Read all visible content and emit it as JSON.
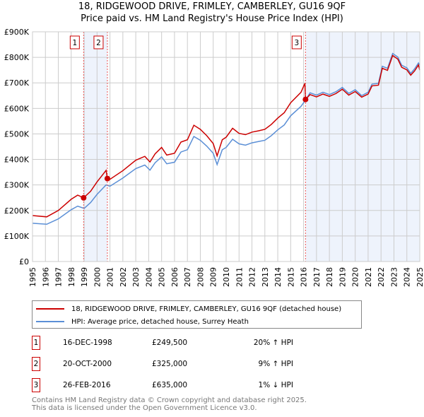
{
  "chart_data": {
    "type": "line",
    "title": "18, RIDGEWOOD DRIVE, FRIMLEY, CAMBERLEY, GU16 9QF",
    "subtitle": "Price paid vs. HM Land Registry's House Price Index (HPI)",
    "xlim": [
      1995,
      2025
    ],
    "ylim": [
      0,
      900000
    ],
    "x_ticks": [
      "1995",
      "1996",
      "1997",
      "1998",
      "1999",
      "2000",
      "2001",
      "2002",
      "2003",
      "2004",
      "2005",
      "2006",
      "2007",
      "2008",
      "2009",
      "2010",
      "2011",
      "2012",
      "2013",
      "2014",
      "2015",
      "2016",
      "2017",
      "2018",
      "2019",
      "2020",
      "2021",
      "2022",
      "2023",
      "2024",
      "2025"
    ],
    "y_ticks": [
      {
        "v": 0,
        "label": "£0"
      },
      {
        "v": 100000,
        "label": "£100K"
      },
      {
        "v": 200000,
        "label": "£200K"
      },
      {
        "v": 300000,
        "label": "£300K"
      },
      {
        "v": 400000,
        "label": "£400K"
      },
      {
        "v": 500000,
        "label": "£500K"
      },
      {
        "v": 600000,
        "label": "£600K"
      },
      {
        "v": 700000,
        "label": "£700K"
      },
      {
        "v": 800000,
        "label": "£800K"
      },
      {
        "v": 900000,
        "label": "£900K"
      }
    ],
    "grid": true,
    "series": [
      {
        "name": "18, RIDGEWOOD DRIVE, FRIMLEY, CAMBERLEY, GU16 9QF (detached house)",
        "color": "#cc0000",
        "points": [
          [
            1995,
            180
          ],
          [
            1996.1,
            175
          ],
          [
            1997,
            200
          ],
          [
            1998,
            244
          ],
          [
            1998.5,
            260
          ],
          [
            1998.96,
            249.5
          ],
          [
            1999.5,
            275
          ],
          [
            2000,
            312
          ],
          [
            2000.7,
            357
          ],
          [
            2000.8,
            325
          ],
          [
            2001,
            322
          ],
          [
            2002,
            356
          ],
          [
            2003,
            397
          ],
          [
            2003.7,
            412
          ],
          [
            2004.1,
            390
          ],
          [
            2004.5,
            422
          ],
          [
            2005,
            447
          ],
          [
            2005.4,
            417
          ],
          [
            2006,
            424
          ],
          [
            2006.5,
            468
          ],
          [
            2007,
            477
          ],
          [
            2007.5,
            534
          ],
          [
            2008,
            518
          ],
          [
            2008.5,
            493
          ],
          [
            2009,
            462
          ],
          [
            2009.3,
            414
          ],
          [
            2009.7,
            477
          ],
          [
            2010,
            487
          ],
          [
            2010.5,
            522
          ],
          [
            2011,
            502
          ],
          [
            2011.5,
            497
          ],
          [
            2012,
            507
          ],
          [
            2012.5,
            512
          ],
          [
            2013,
            518
          ],
          [
            2013.5,
            537
          ],
          [
            2014,
            562
          ],
          [
            2014.5,
            583
          ],
          [
            2015,
            622
          ],
          [
            2015.8,
            663
          ],
          [
            2016.1,
            698
          ],
          [
            2016.15,
            635
          ],
          [
            2016.5,
            654
          ],
          [
            2017,
            645
          ],
          [
            2017.5,
            656
          ],
          [
            2018,
            647
          ],
          [
            2018.5,
            658
          ],
          [
            2019,
            675
          ],
          [
            2019.5,
            652
          ],
          [
            2020,
            666
          ],
          [
            2020.5,
            644
          ],
          [
            2021,
            656
          ],
          [
            2021.3,
            688
          ],
          [
            2021.8,
            691
          ],
          [
            2022.1,
            757
          ],
          [
            2022.5,
            749
          ],
          [
            2022.9,
            807
          ],
          [
            2023.3,
            793
          ],
          [
            2023.6,
            761
          ],
          [
            2024,
            751
          ],
          [
            2024.3,
            730
          ],
          [
            2024.6,
            747
          ],
          [
            2024.9,
            770
          ],
          [
            2025,
            750
          ]
        ]
      },
      {
        "name": "HPI: Average price, detached house, Surrey Heath",
        "color": "#5b8fd6",
        "points": [
          [
            1995,
            150
          ],
          [
            1996.1,
            146
          ],
          [
            1997,
            167
          ],
          [
            1998,
            203
          ],
          [
            1998.5,
            217
          ],
          [
            1999,
            208
          ],
          [
            1999.5,
            231
          ],
          [
            2000,
            263
          ],
          [
            2000.7,
            300
          ],
          [
            2001,
            295
          ],
          [
            2002,
            327
          ],
          [
            2003,
            364
          ],
          [
            2003.7,
            378
          ],
          [
            2004.1,
            358
          ],
          [
            2004.5,
            387
          ],
          [
            2005,
            410
          ],
          [
            2005.4,
            383
          ],
          [
            2006,
            389
          ],
          [
            2006.5,
            429
          ],
          [
            2007,
            438
          ],
          [
            2007.5,
            490
          ],
          [
            2008,
            475
          ],
          [
            2008.5,
            452
          ],
          [
            2009,
            424
          ],
          [
            2009.3,
            380
          ],
          [
            2009.7,
            438
          ],
          [
            2010,
            447
          ],
          [
            2010.5,
            479
          ],
          [
            2011,
            461
          ],
          [
            2011.5,
            456
          ],
          [
            2012,
            465
          ],
          [
            2012.5,
            470
          ],
          [
            2013,
            475
          ],
          [
            2013.5,
            493
          ],
          [
            2014,
            516
          ],
          [
            2014.5,
            535
          ],
          [
            2015,
            571
          ],
          [
            2015.8,
            608
          ],
          [
            2016.2,
            636
          ],
          [
            2016.5,
            661
          ],
          [
            2017,
            652
          ],
          [
            2017.5,
            663
          ],
          [
            2018,
            654
          ],
          [
            2018.5,
            665
          ],
          [
            2019,
            682
          ],
          [
            2019.5,
            659
          ],
          [
            2020,
            673
          ],
          [
            2020.5,
            650
          ],
          [
            2021,
            663
          ],
          [
            2021.3,
            695
          ],
          [
            2021.8,
            698
          ],
          [
            2022.1,
            765
          ],
          [
            2022.5,
            757
          ],
          [
            2022.9,
            815
          ],
          [
            2023.3,
            801
          ],
          [
            2023.6,
            769
          ],
          [
            2024,
            759
          ],
          [
            2024.3,
            737
          ],
          [
            2024.6,
            755
          ],
          [
            2024.9,
            778
          ],
          [
            2025,
            769
          ]
        ]
      }
    ],
    "sales": [
      {
        "id": "1",
        "x": 1998.96,
        "y": 249.5,
        "date": "16-DEC-1998",
        "price": "£249,500",
        "hpi": "20% ↑ HPI"
      },
      {
        "id": "2",
        "x": 2000.8,
        "y": 325,
        "date": "20-OCT-2000",
        "price": "£325,000",
        "hpi": "9% ↑ HPI"
      },
      {
        "id": "3",
        "x": 2016.15,
        "y": 635,
        "date": "26-FEB-2016",
        "price": "£635,000",
        "hpi": "1% ↓ HPI"
      }
    ],
    "value_units": "£ thousands"
  },
  "footer": {
    "line1": "Contains HM Land Registry data © Crown copyright and database right 2025.",
    "line2": "This data is licensed under the Open Government Licence v3.0."
  }
}
